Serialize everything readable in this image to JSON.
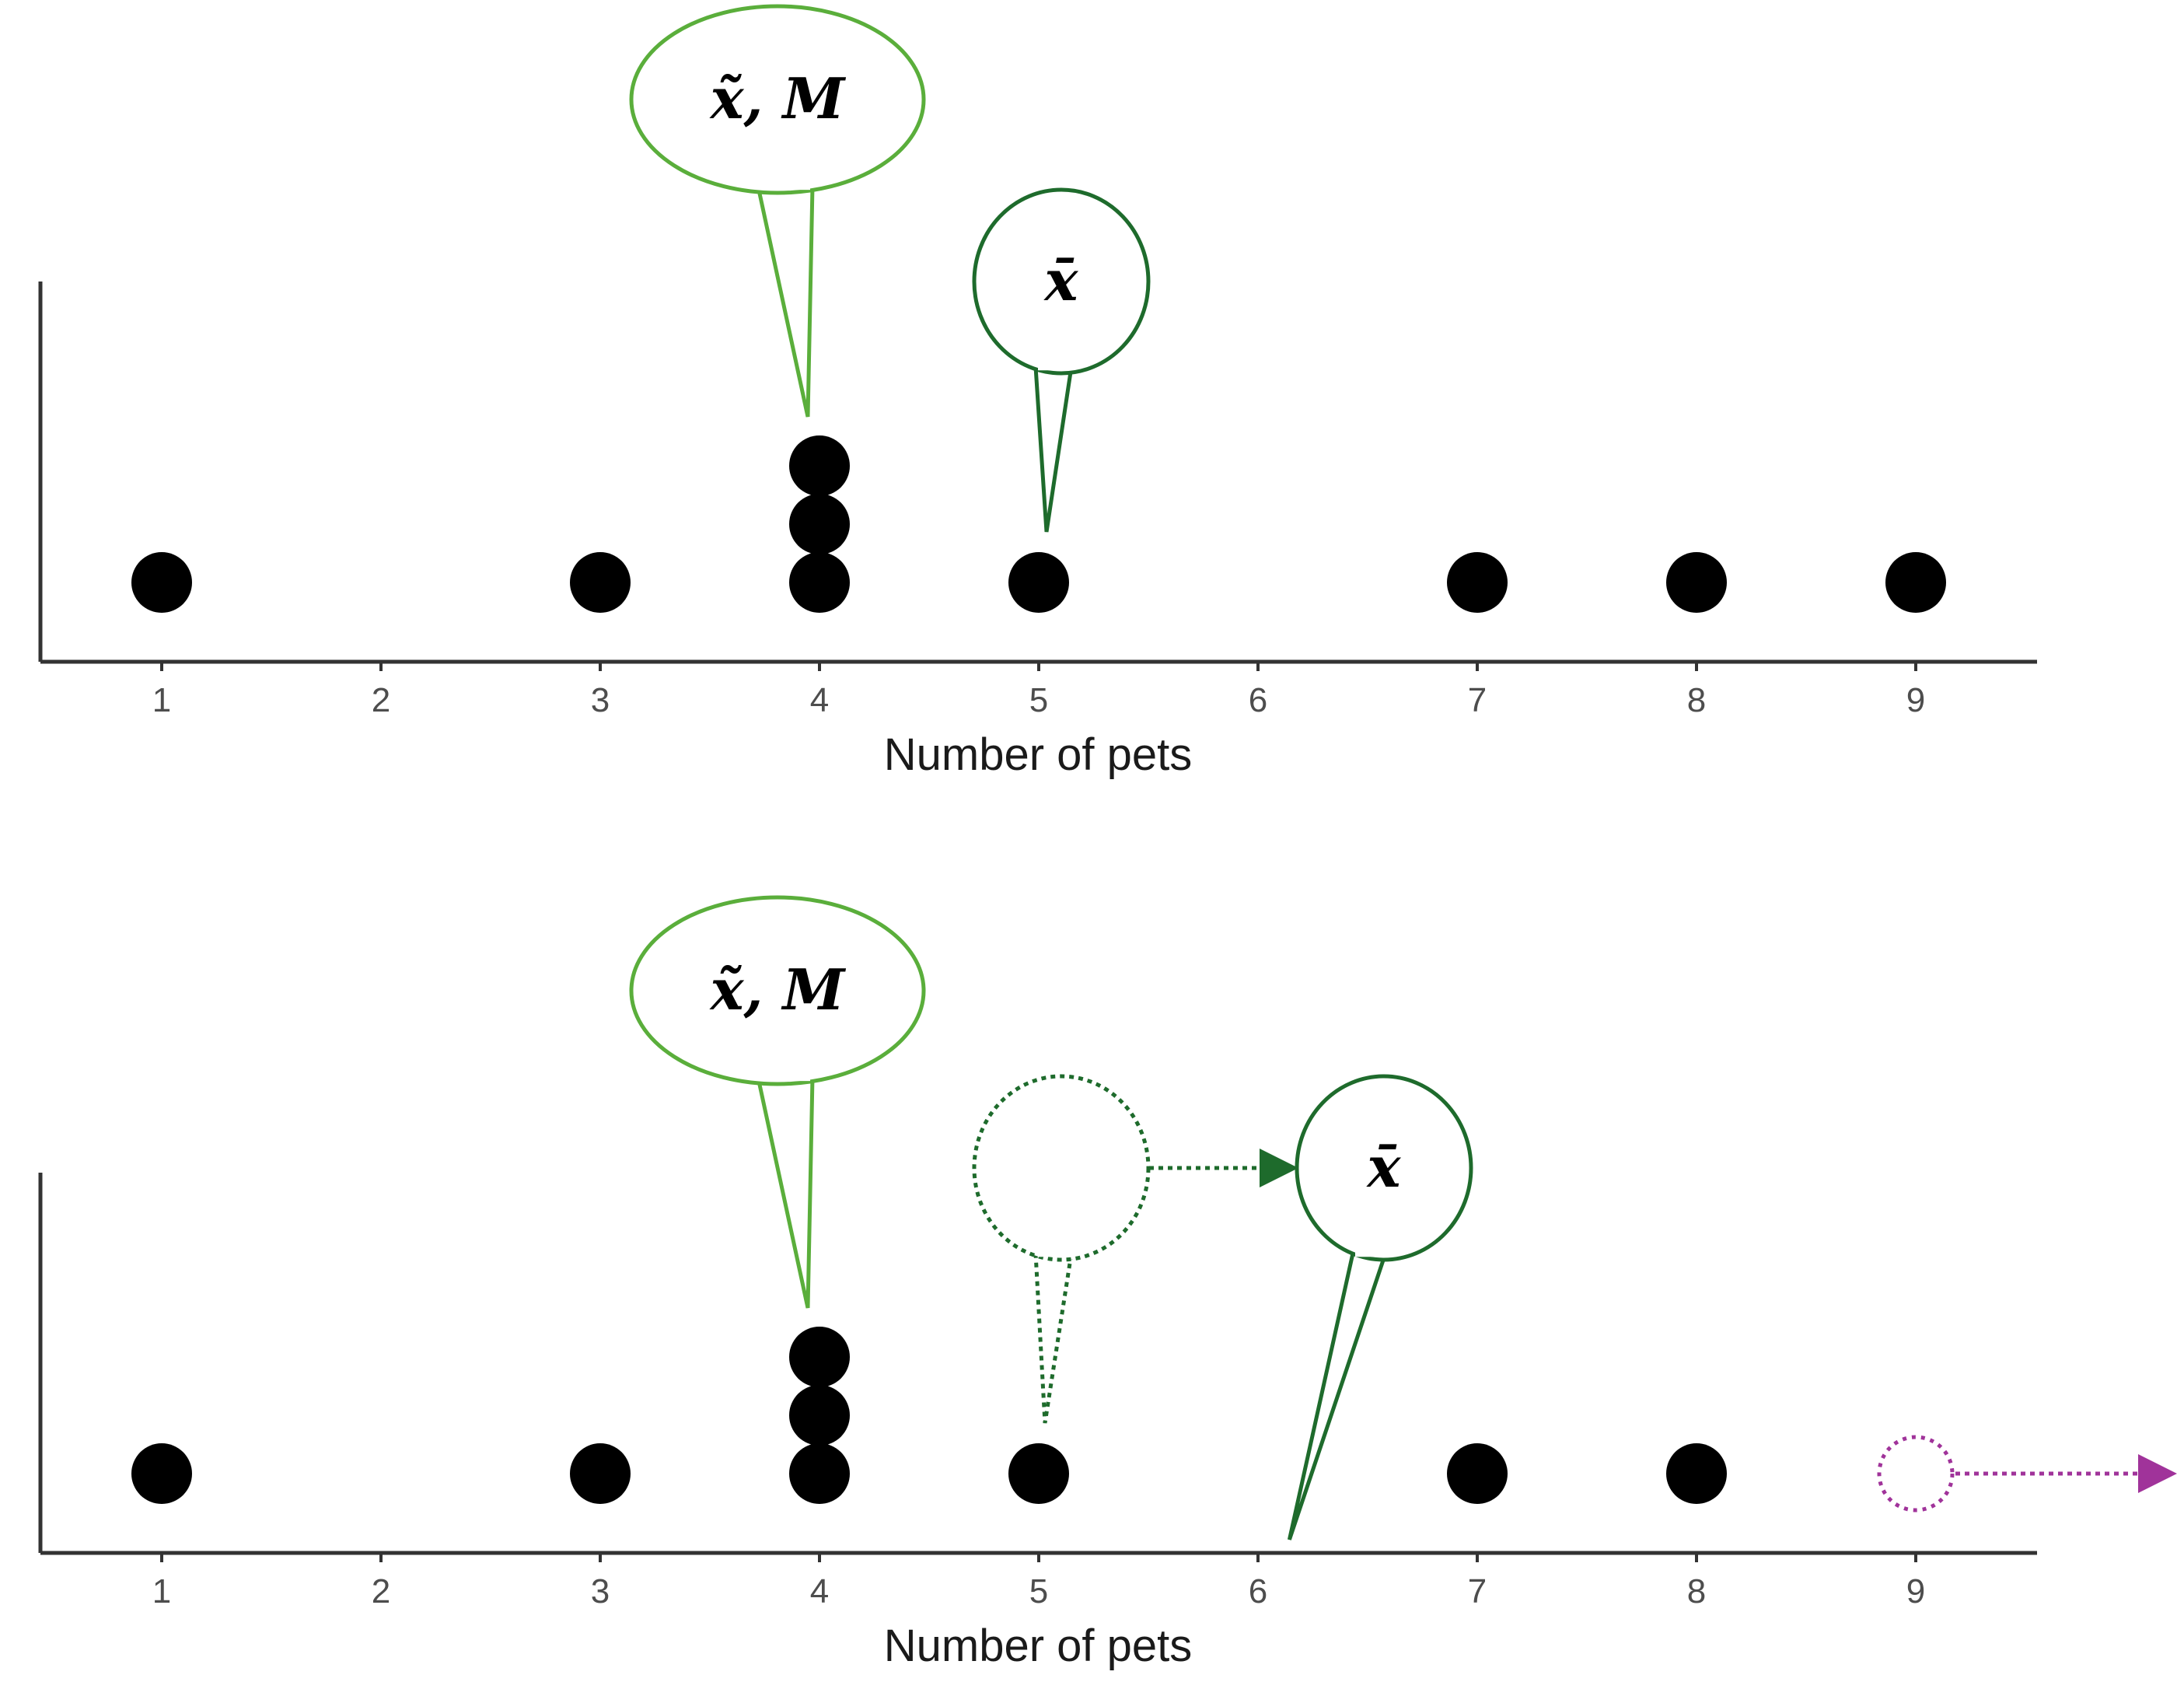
{
  "colors": {
    "median_mode_callout": "#5aae3b",
    "mean_callout": "#1e6b2c",
    "outlier_marker": "#a0339a",
    "dots": "#000000",
    "axis": "#333333"
  },
  "chart_data": [
    {
      "type": "dot",
      "xlabel": "Number of pets",
      "xlim": [
        0.5,
        9.5
      ],
      "x_ticks": [
        "1",
        "2",
        "3",
        "4",
        "5",
        "6",
        "7",
        "8",
        "9"
      ],
      "points": [
        {
          "x": 1,
          "count": 1
        },
        {
          "x": 3,
          "count": 1
        },
        {
          "x": 4,
          "count": 3
        },
        {
          "x": 5,
          "count": 1
        },
        {
          "x": 7,
          "count": 1
        },
        {
          "x": 8,
          "count": 1
        },
        {
          "x": 9,
          "count": 1
        }
      ],
      "annotations": [
        {
          "name": "median-mode",
          "text": "x̃, M",
          "points_to_x": 4,
          "style": "solid"
        },
        {
          "name": "mean",
          "text": "x̄",
          "points_to_x": 5,
          "style": "solid"
        }
      ]
    },
    {
      "type": "dot",
      "xlabel": "Number of pets",
      "xlim": [
        0.5,
        9.5
      ],
      "x_ticks": [
        "1",
        "2",
        "3",
        "4",
        "5",
        "6",
        "7",
        "8",
        "9"
      ],
      "points": [
        {
          "x": 1,
          "count": 1
        },
        {
          "x": 3,
          "count": 1
        },
        {
          "x": 4,
          "count": 3
        },
        {
          "x": 5,
          "count": 1
        },
        {
          "x": 7,
          "count": 1
        },
        {
          "x": 8,
          "count": 1
        }
      ],
      "moved_point": {
        "from_x": 9,
        "direction": "right"
      },
      "annotations": [
        {
          "name": "median-mode",
          "text": "x̃, M",
          "points_to_x": 4,
          "style": "solid"
        },
        {
          "name": "previous-mean",
          "text": "",
          "points_to_x": 5,
          "style": "dotted"
        },
        {
          "name": "mean",
          "text": "x̄",
          "points_to_x": 6.2,
          "style": "solid"
        }
      ]
    }
  ]
}
